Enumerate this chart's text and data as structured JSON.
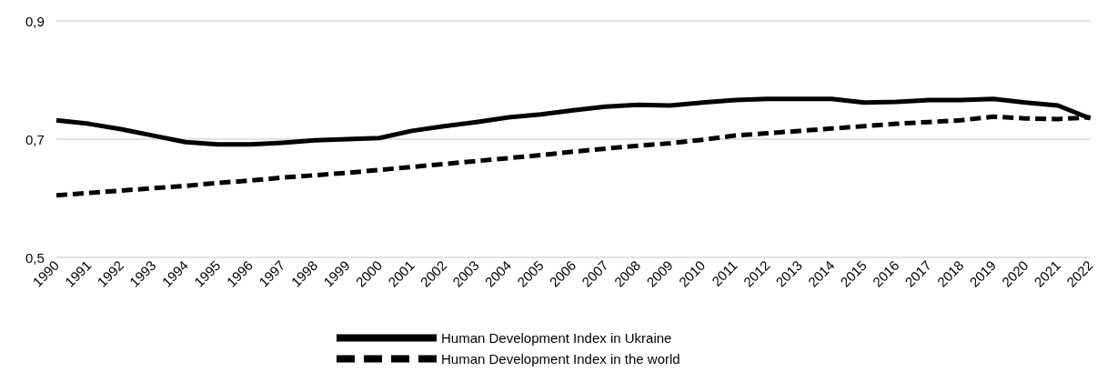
{
  "chart_data": {
    "type": "line",
    "categories": [
      "1990",
      "1991",
      "1992",
      "1993",
      "1994",
      "1995",
      "1996",
      "1997",
      "1998",
      "1999",
      "2000",
      "2001",
      "2002",
      "2003",
      "2004",
      "2005",
      "2006",
      "2007",
      "2008",
      "2009",
      "2010",
      "2011",
      "2012",
      "2013",
      "2014",
      "2015",
      "2016",
      "2017",
      "2018",
      "2019",
      "2020",
      "2021",
      "2022"
    ],
    "series": [
      {
        "name": "Human Development Index in Ukraine",
        "color": "#000000",
        "line_style": "solid",
        "values": [
          0.732,
          0.726,
          0.717,
          0.706,
          0.695,
          0.691,
          0.691,
          0.694,
          0.698,
          0.7,
          0.702,
          0.714,
          0.722,
          0.729,
          0.737,
          0.742,
          0.749,
          0.755,
          0.758,
          0.757,
          0.762,
          0.766,
          0.768,
          0.768,
          0.768,
          0.762,
          0.763,
          0.766,
          0.766,
          0.768,
          0.762,
          0.757,
          0.735
        ]
      },
      {
        "name": "Human Development Index in the world",
        "color": "#000000",
        "line_style": "dashed",
        "values": [
          0.605,
          0.609,
          0.613,
          0.617,
          0.621,
          0.626,
          0.63,
          0.635,
          0.639,
          0.643,
          0.648,
          0.653,
          0.658,
          0.663,
          0.668,
          0.673,
          0.679,
          0.684,
          0.689,
          0.693,
          0.699,
          0.706,
          0.71,
          0.714,
          0.718,
          0.722,
          0.726,
          0.729,
          0.732,
          0.738,
          0.735,
          0.734,
          0.737
        ]
      }
    ],
    "ylim": [
      0.5,
      0.9
    ],
    "yticks": [
      {
        "value": 0.5,
        "label": "0,5"
      },
      {
        "value": 0.7,
        "label": "0,7"
      },
      {
        "value": 0.9,
        "label": "0,9"
      }
    ],
    "grid": "y",
    "legend": "bottom",
    "marker": "none"
  }
}
